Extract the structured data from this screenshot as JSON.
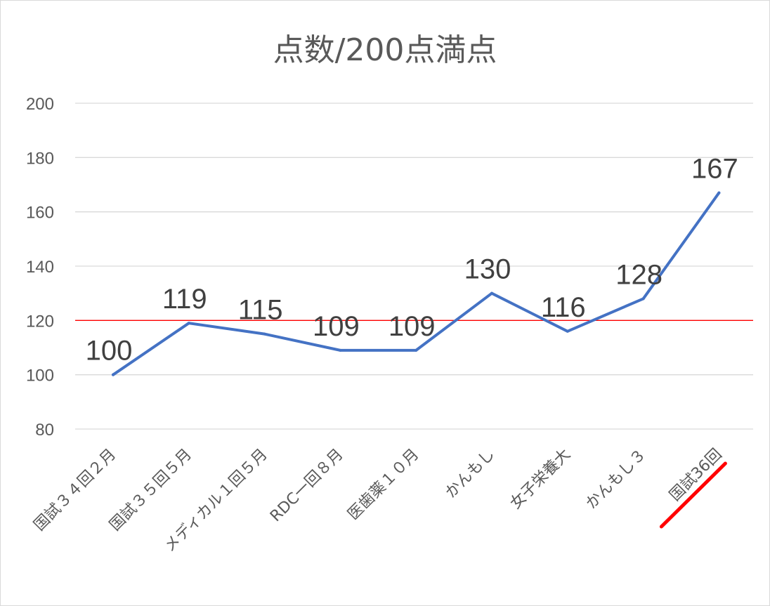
{
  "chart_data": {
    "type": "line",
    "title": "点数/200点満点",
    "xlabel": "",
    "ylabel": "",
    "categories": [
      "国試３４回２月",
      "国試３５回５月",
      "メディカル１回５月",
      "RDC一回８月",
      "医歯薬１０月",
      "かんもし",
      "女子栄養大",
      "かんもし３",
      "国試36回"
    ],
    "series": [
      {
        "values": [
          100,
          119,
          115,
          109,
          109,
          130,
          116,
          128,
          167
        ],
        "color": "#4472c4"
      }
    ],
    "ylim": [
      80,
      200
    ],
    "yticks": [
      80,
      100,
      120,
      140,
      160,
      180,
      200
    ],
    "reference_line": {
      "value": 120,
      "color": "#ff0000"
    },
    "highlight": {
      "category_index": 8,
      "underline_color": "#ff0000"
    },
    "grid": true,
    "legend": "none",
    "data_labels": true
  }
}
